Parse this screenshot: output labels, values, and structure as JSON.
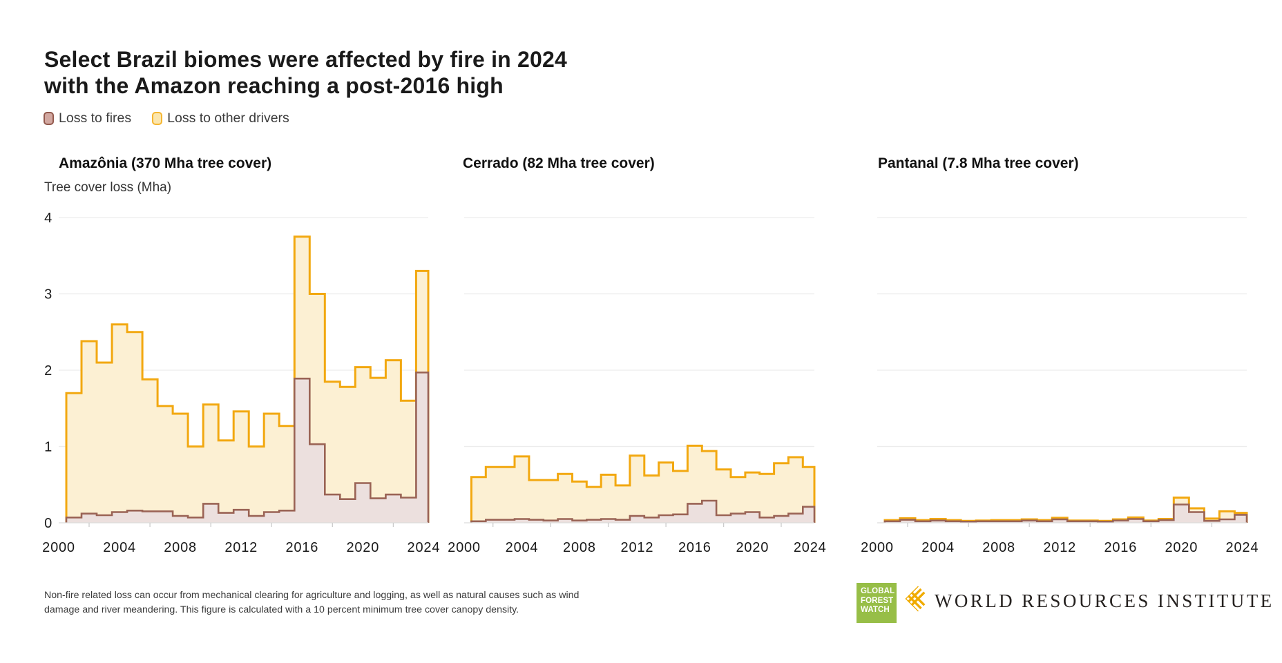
{
  "header": {
    "title_line1": "Select Brazil biomes were affected by fire in 2024",
    "title_line2": "with the Amazon reaching a post-2016 high"
  },
  "legend": {
    "items": [
      {
        "label": "Loss to fires",
        "swatch_fill": "#D2A8A1",
        "swatch_border": "#935A4E"
      },
      {
        "label": "Loss to other drivers",
        "swatch_fill": "#FBE6AE",
        "swatch_border": "#F5B632"
      }
    ]
  },
  "colors": {
    "fires_stroke": "#9A6355",
    "fires_fill": "#ECE0DE",
    "other_stroke": "#F2A810",
    "other_fill": "#FCF0D3",
    "grid": "#ECECEC",
    "axis_line": "#DCDCDC",
    "tick": "#CCCCCC",
    "tick_label": "#1A1A1A"
  },
  "charts_shared": {
    "y_axis_caption": "Tree cover loss (Mha)",
    "ylim": [
      0,
      4
    ],
    "xlim": [
      2000,
      2024.3
    ],
    "y_ticks": [
      0,
      1,
      2,
      3,
      4
    ],
    "x_tick_labels": [
      2000,
      2004,
      2008,
      2012,
      2016,
      2020,
      2024
    ],
    "minor_x_ticks": [
      2002,
      2006,
      2010,
      2014,
      2018,
      2022
    ]
  },
  "chart_data": [
    {
      "type": "area-step",
      "title": "Amazônia (370 Mha tree cover)",
      "ylabel": "Tree cover loss (Mha)",
      "x": [
        2001,
        2002,
        2003,
        2004,
        2005,
        2006,
        2007,
        2008,
        2009,
        2010,
        2011,
        2012,
        2013,
        2014,
        2015,
        2016,
        2017,
        2018,
        2019,
        2020,
        2021,
        2022,
        2023,
        2024
      ],
      "series": [
        {
          "name": "Loss to fires",
          "role": "fires",
          "values": [
            0.07,
            0.12,
            0.1,
            0.14,
            0.16,
            0.15,
            0.15,
            0.09,
            0.07,
            0.25,
            0.13,
            0.17,
            0.09,
            0.14,
            0.16,
            1.89,
            1.03,
            0.37,
            0.31,
            0.52,
            0.32,
            0.37,
            0.33,
            1.97
          ]
        },
        {
          "name": "Loss to other drivers",
          "role": "other",
          "values": [
            1.7,
            2.38,
            2.1,
            2.6,
            2.5,
            1.88,
            1.53,
            1.43,
            1.0,
            1.55,
            1.08,
            1.46,
            1.0,
            1.43,
            1.27,
            3.75,
            3.0,
            1.85,
            1.78,
            2.04,
            1.9,
            2.13,
            1.6,
            3.3
          ]
        }
      ]
    },
    {
      "type": "area-step",
      "title": "Cerrado (82 Mha tree cover)",
      "x": [
        2001,
        2002,
        2003,
        2004,
        2005,
        2006,
        2007,
        2008,
        2009,
        2010,
        2011,
        2012,
        2013,
        2014,
        2015,
        2016,
        2017,
        2018,
        2019,
        2020,
        2021,
        2022,
        2023,
        2024
      ],
      "series": [
        {
          "name": "Loss to fires",
          "role": "fires",
          "values": [
            0.02,
            0.04,
            0.04,
            0.05,
            0.04,
            0.03,
            0.05,
            0.03,
            0.04,
            0.05,
            0.04,
            0.09,
            0.07,
            0.1,
            0.11,
            0.25,
            0.29,
            0.1,
            0.12,
            0.14,
            0.07,
            0.09,
            0.12,
            0.21
          ]
        },
        {
          "name": "Loss to other drivers",
          "role": "other",
          "values": [
            0.6,
            0.73,
            0.73,
            0.87,
            0.56,
            0.56,
            0.64,
            0.54,
            0.47,
            0.63,
            0.49,
            0.88,
            0.62,
            0.79,
            0.68,
            1.01,
            0.94,
            0.7,
            0.6,
            0.66,
            0.64,
            0.78,
            0.86,
            0.73
          ]
        }
      ]
    },
    {
      "type": "area-step",
      "title": "Pantanal (7.8 Mha tree cover)",
      "x": [
        2001,
        2002,
        2003,
        2004,
        2005,
        2006,
        2007,
        2008,
        2009,
        2010,
        2011,
        2012,
        2013,
        2014,
        2015,
        2016,
        2017,
        2018,
        2019,
        2020,
        2021,
        2022,
        2023,
        2024
      ],
      "series": [
        {
          "name": "Loss to fires",
          "role": "fires",
          "values": [
            0.02,
            0.04,
            0.02,
            0.03,
            0.02,
            0.015,
            0.02,
            0.02,
            0.02,
            0.03,
            0.02,
            0.045,
            0.02,
            0.02,
            0.015,
            0.03,
            0.05,
            0.02,
            0.035,
            0.24,
            0.14,
            0.025,
            0.045,
            0.105
          ]
        },
        {
          "name": "Loss to other drivers",
          "role": "other",
          "values": [
            0.035,
            0.06,
            0.035,
            0.05,
            0.035,
            0.025,
            0.03,
            0.035,
            0.035,
            0.045,
            0.035,
            0.065,
            0.03,
            0.03,
            0.025,
            0.045,
            0.07,
            0.03,
            0.05,
            0.33,
            0.19,
            0.055,
            0.15,
            0.13
          ]
        }
      ]
    }
  ],
  "footnote": {
    "line1": "Non-fire related loss can occur from mechanical clearing for agriculture and logging, as well as natural causes such as wind",
    "line2": "damage and river meandering. This figure is calculated with a 10 percent minimum tree cover canopy density."
  },
  "footer_logos": {
    "gfw": {
      "lines": [
        "GLOBAL",
        "FOREST",
        "WATCH"
      ],
      "bg": "#97BE47"
    },
    "wri": {
      "name": "WORLD RESOURCES INSTITUTE",
      "gold": "#F0AB00"
    }
  }
}
